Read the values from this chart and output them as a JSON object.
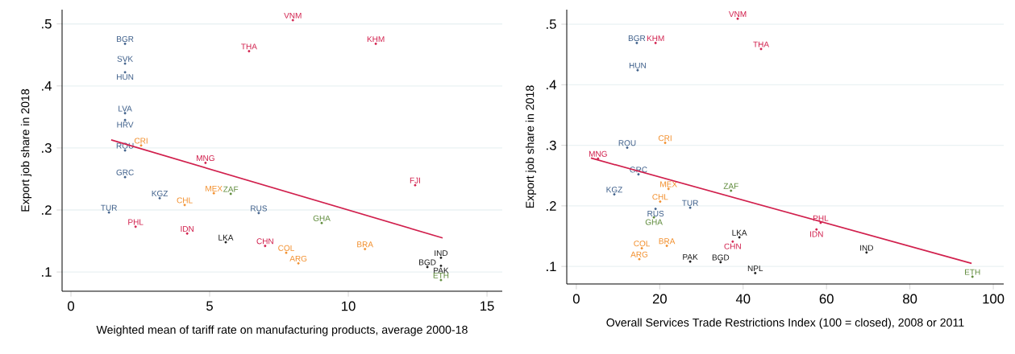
{
  "chart_data": [
    {
      "type": "scatter",
      "xlabel": "Weighted mean of tariff rate on manufacturing products, average 2000-18",
      "ylabel": "Export job share in 2018",
      "xlim": [
        -0.32,
        15.55
      ],
      "ylim": [
        0.069,
        0.523
      ],
      "xticks": [
        0,
        5,
        10,
        15
      ],
      "yticks": [
        {
          "value": 0.1,
          "label": ".1"
        },
        {
          "value": 0.2,
          "label": ".2"
        },
        {
          "value": 0.3,
          "label": ".3"
        },
        {
          "value": 0.4,
          "label": ".4"
        },
        {
          "value": 0.5,
          "label": ".5"
        }
      ],
      "grid": "y",
      "marker": "circle",
      "series": [
        {
          "name": "VNM",
          "color": "#d1204d",
          "x": [
            8.0
          ],
          "values": [
            0.506
          ]
        },
        {
          "name": "BGR",
          "color": "#3e5f8a",
          "x": [
            1.95
          ],
          "values": [
            0.468
          ]
        },
        {
          "name": "THA",
          "color": "#d1204d",
          "x": [
            6.42
          ],
          "values": [
            0.456
          ]
        },
        {
          "name": "KHM",
          "color": "#d1204d",
          "x": [
            10.99
          ],
          "values": [
            0.468
          ]
        },
        {
          "name": "SVK",
          "color": "#3e5f8a",
          "x": [
            1.95
          ],
          "values": [
            0.436
          ]
        },
        {
          "name": "HUN",
          "color": "#3e5f8a",
          "x": [
            1.95
          ],
          "values": [
            0.422
          ]
        },
        {
          "name": "LVA",
          "color": "#3e5f8a",
          "x": [
            1.95
          ],
          "values": [
            0.356
          ]
        },
        {
          "name": "HRV",
          "color": "#3e5f8a",
          "x": [
            1.95
          ],
          "values": [
            0.345
          ]
        },
        {
          "name": "CRI",
          "color": "#f28e2b",
          "x": [
            2.53
          ],
          "values": [
            0.304
          ]
        },
        {
          "name": "ROU",
          "color": "#3e5f8a",
          "x": [
            1.95
          ],
          "values": [
            0.296
          ]
        },
        {
          "name": "MNG",
          "color": "#d1204d",
          "x": [
            4.85
          ],
          "values": [
            0.276
          ]
        },
        {
          "name": "GRC",
          "color": "#3e5f8a",
          "x": [
            1.95
          ],
          "values": [
            0.253
          ]
        },
        {
          "name": "FJI",
          "color": "#d1204d",
          "x": [
            12.41
          ],
          "values": [
            0.24
          ]
        },
        {
          "name": "KGZ",
          "color": "#3e5f8a",
          "x": [
            3.2
          ],
          "values": [
            0.219
          ]
        },
        {
          "name": "MEX",
          "color": "#f28e2b",
          "x": [
            5.15
          ],
          "values": [
            0.227
          ]
        },
        {
          "name": "ZAF",
          "color": "#5e8a3a",
          "x": [
            5.76
          ],
          "values": [
            0.226
          ]
        },
        {
          "name": "CHL",
          "color": "#f28e2b",
          "x": [
            4.1
          ],
          "values": [
            0.208
          ]
        },
        {
          "name": "TUR",
          "color": "#3e5f8a",
          "x": [
            1.37
          ],
          "values": [
            0.196
          ]
        },
        {
          "name": "RUS",
          "color": "#3e5f8a",
          "x": [
            6.77
          ],
          "values": [
            0.195
          ]
        },
        {
          "name": "GHA",
          "color": "#5e8a3a",
          "x": [
            9.04
          ],
          "values": [
            0.179
          ]
        },
        {
          "name": "PHL",
          "color": "#d1204d",
          "x": [
            2.33
          ],
          "values": [
            0.173
          ]
        },
        {
          "name": "IDN",
          "color": "#d1204d",
          "x": [
            4.19
          ],
          "values": [
            0.162
          ]
        },
        {
          "name": "LKA",
          "color": "#1a1a1a",
          "x": [
            5.58
          ],
          "values": [
            0.148
          ]
        },
        {
          "name": "CHN",
          "color": "#d1204d",
          "x": [
            7.0
          ],
          "values": [
            0.142
          ]
        },
        {
          "name": "BRA",
          "color": "#f28e2b",
          "x": [
            10.6
          ],
          "values": [
            0.137
          ]
        },
        {
          "name": "COL",
          "color": "#f28e2b",
          "x": [
            7.76
          ],
          "values": [
            0.131
          ]
        },
        {
          "name": "IND",
          "color": "#1a1a1a",
          "x": [
            13.34
          ],
          "values": [
            0.123
          ]
        },
        {
          "name": "ARG",
          "color": "#f28e2b",
          "x": [
            8.2
          ],
          "values": [
            0.114
          ]
        },
        {
          "name": "PAK",
          "color": "#1a1a1a",
          "x": [
            13.34
          ],
          "values": [
            0.11
          ]
        },
        {
          "name": "BGD",
          "color": "#1a1a1a",
          "x": [
            12.85
          ],
          "values": [
            0.108
          ]
        },
        {
          "name": "ETH",
          "color": "#5e8a3a",
          "x": [
            13.34
          ],
          "values": [
            0.087
          ]
        },
        {
          "type": "line",
          "line_style": "solid",
          "marker": "none",
          "color": "#d1204d",
          "x": [
            1.45,
            13.4
          ],
          "values": [
            0.313,
            0.155
          ]
        }
      ]
    },
    {
      "type": "scatter",
      "xlabel": "Overall Services Trade Restrictions Index (100 = closed), 2008 or 2011",
      "ylabel": "Export job share in 2018",
      "xlim": [
        -2.3,
        102.5
      ],
      "ylim": [
        0.071,
        0.524
      ],
      "xticks": [
        0,
        20,
        40,
        60,
        80,
        100
      ],
      "yticks": [
        {
          "value": 0.1,
          "label": ".1"
        },
        {
          "value": 0.2,
          "label": ".2"
        },
        {
          "value": 0.3,
          "label": ".3"
        },
        {
          "value": 0.4,
          "label": ".4"
        },
        {
          "value": 0.5,
          "label": ".5"
        }
      ],
      "grid": "y",
      "marker": "circle",
      "series": [
        {
          "name": "VNM",
          "color": "#d1204d",
          "x": [
            38.7
          ],
          "values": [
            0.509
          ]
        },
        {
          "name": "BGR",
          "color": "#3e5f8a",
          "x": [
            14.5
          ],
          "values": [
            0.469
          ]
        },
        {
          "name": "KHM",
          "color": "#d1204d",
          "x": [
            19.0
          ],
          "values": [
            0.469
          ]
        },
        {
          "name": "THA",
          "color": "#d1204d",
          "x": [
            44.3
          ],
          "values": [
            0.459
          ]
        },
        {
          "name": "HUN",
          "color": "#3e5f8a",
          "x": [
            14.7
          ],
          "values": [
            0.424
          ]
        },
        {
          "name": "ROU",
          "color": "#3e5f8a",
          "x": [
            12.2
          ],
          "values": [
            0.296
          ]
        },
        {
          "name": "CRI",
          "color": "#f28e2b",
          "x": [
            21.3
          ],
          "values": [
            0.304
          ]
        },
        {
          "name": "MNG",
          "color": "#d1204d",
          "x": [
            5.2
          ],
          "values": [
            0.278
          ]
        },
        {
          "name": "GRC",
          "color": "#3e5f8a",
          "x": [
            14.9
          ],
          "values": [
            0.252
          ]
        },
        {
          "name": "MEX",
          "color": "#f28e2b",
          "x": [
            22.1
          ],
          "values": [
            0.228
          ]
        },
        {
          "name": "ZAF",
          "color": "#5e8a3a",
          "x": [
            37.1
          ],
          "values": [
            0.225
          ]
        },
        {
          "name": "KGZ",
          "color": "#3e5f8a",
          "x": [
            9.1
          ],
          "values": [
            0.219
          ]
        },
        {
          "name": "CHL",
          "color": "#f28e2b",
          "x": [
            20.1
          ],
          "values": [
            0.207
          ]
        },
        {
          "name": "RUS",
          "color": "#3e5f8a",
          "x": [
            19.0
          ],
          "values": [
            0.195
          ]
        },
        {
          "name": "TUR",
          "color": "#3e5f8a",
          "x": [
            27.3
          ],
          "values": [
            0.197
          ]
        },
        {
          "name": "GHA",
          "color": "#5e8a3a",
          "x": [
            18.6
          ],
          "values": [
            0.181
          ]
        },
        {
          "name": "PHL",
          "color": "#d1204d",
          "x": [
            58.6
          ],
          "values": [
            0.172
          ]
        },
        {
          "name": "IDN",
          "color": "#d1204d",
          "x": [
            57.6
          ],
          "values": [
            0.161
          ]
        },
        {
          "name": "LKA",
          "color": "#1a1a1a",
          "x": [
            39.1
          ],
          "values": [
            0.148
          ]
        },
        {
          "name": "CHN",
          "color": "#d1204d",
          "x": [
            37.5
          ],
          "values": [
            0.141
          ]
        },
        {
          "name": "BRA",
          "color": "#f28e2b",
          "x": [
            21.7
          ],
          "values": [
            0.134
          ]
        },
        {
          "name": "COL",
          "color": "#f28e2b",
          "x": [
            15.7
          ],
          "values": [
            0.13
          ]
        },
        {
          "name": "IND",
          "color": "#1a1a1a",
          "x": [
            69.6
          ],
          "values": [
            0.123
          ]
        },
        {
          "name": "ARG",
          "color": "#f28e2b",
          "x": [
            15.1
          ],
          "values": [
            0.112
          ]
        },
        {
          "name": "PAK",
          "color": "#1a1a1a",
          "x": [
            27.3
          ],
          "values": [
            0.108
          ]
        },
        {
          "name": "BGD",
          "color": "#1a1a1a",
          "x": [
            34.6
          ],
          "values": [
            0.107
          ]
        },
        {
          "name": "NPL",
          "color": "#1a1a1a",
          "x": [
            42.9
          ],
          "values": [
            0.089
          ]
        },
        {
          "name": "ETH",
          "color": "#5e8a3a",
          "x": [
            95.0
          ],
          "values": [
            0.083
          ]
        },
        {
          "type": "line",
          "line_style": "solid",
          "marker": "none",
          "color": "#d1204d",
          "x": [
            3.5,
            94.8
          ],
          "values": [
            0.279,
            0.105
          ]
        }
      ]
    }
  ]
}
